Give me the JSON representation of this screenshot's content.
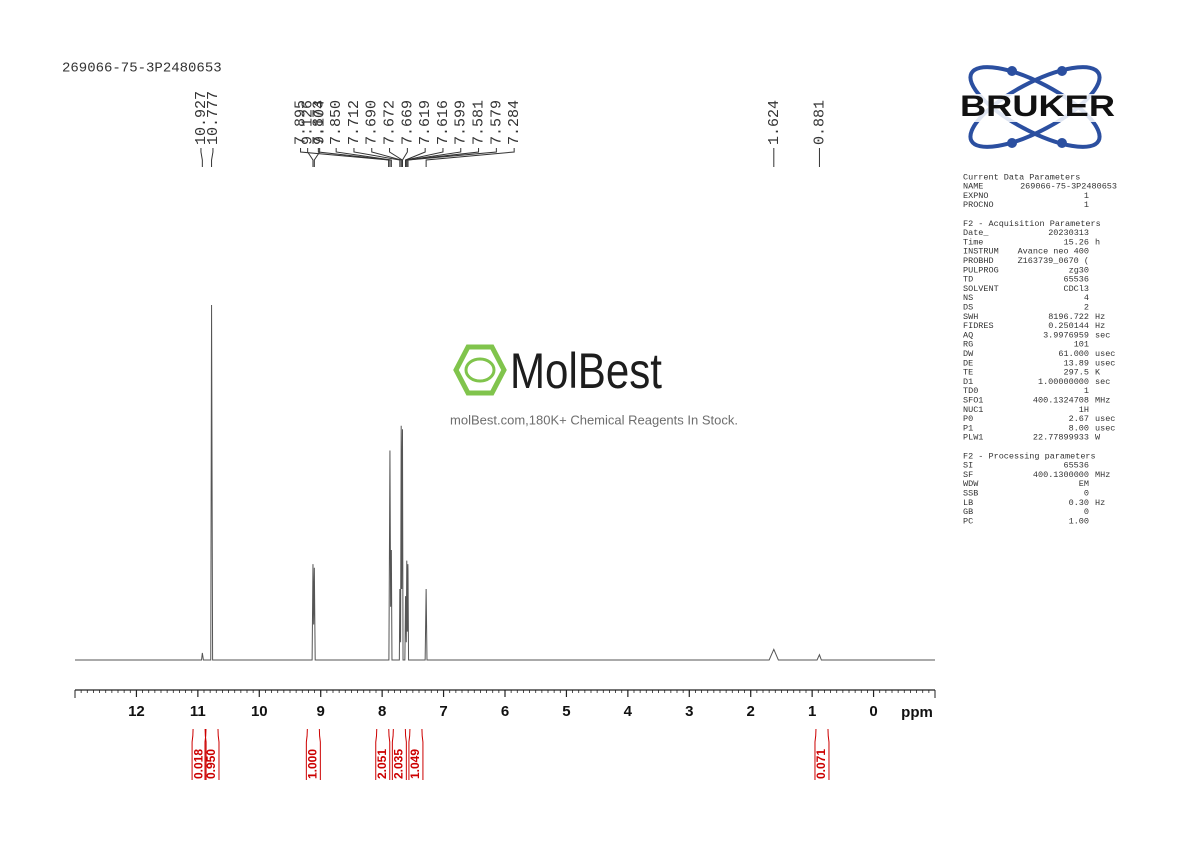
{
  "chart_data": {
    "type": "line",
    "title": "269066-75-3P2480653",
    "x_label": "ppm",
    "xlim": [
      13,
      -1
    ],
    "xticks": [
      12,
      11,
      10,
      9,
      8,
      7,
      6,
      5,
      4,
      3,
      2,
      1,
      0
    ],
    "ylim": [
      0,
      100
    ],
    "color": "#555555",
    "x": [
      13,
      10.94,
      10.927,
      10.91,
      10.79,
      10.777,
      10.76,
      9.14,
      9.126,
      9.115,
      9.104,
      9.09,
      7.89,
      7.873,
      7.862,
      7.85,
      7.84,
      7.72,
      7.712,
      7.7,
      7.69,
      7.681,
      7.672,
      7.669,
      7.66,
      7.63,
      7.619,
      7.616,
      7.607,
      7.599,
      7.59,
      7.581,
      7.579,
      7.57,
      7.3,
      7.284,
      7.27,
      1.7,
      1.624,
      1.55,
      0.92,
      0.881,
      0.85,
      -1
    ],
    "values": [
      0,
      0,
      2,
      0,
      0,
      100,
      0,
      0,
      27,
      10,
      26,
      0,
      0,
      59,
      15,
      31,
      0,
      0,
      20,
      5,
      66,
      20,
      60,
      65,
      0,
      0,
      18,
      15,
      5,
      28,
      8,
      27,
      25,
      0,
      0,
      20,
      0,
      0,
      3,
      0,
      0,
      1.5,
      0,
      0
    ],
    "peak_labels": [
      10.927,
      10.777,
      9.126,
      9.104,
      7.895,
      7.873,
      {
        "value": 7.85,
        "label": "7.850"
      },
      7.712,
      {
        "value": 7.69,
        "label": "7.690"
      },
      7.672,
      7.669,
      7.619,
      7.616,
      7.599,
      7.581,
      7.579,
      7.284,
      1.624,
      0.881
    ],
    "integrals_color": "#cc0000",
    "integrals": [
      {
        "at": 10.98,
        "value": 0.018
      },
      {
        "at": 10.77,
        "value": 0.95,
        "label": "0.950"
      },
      {
        "at": 9.12,
        "value": 1,
        "label": "1.000"
      },
      {
        "at": 7.99,
        "value": 2.051
      },
      {
        "at": 7.72,
        "value": 2.035
      },
      {
        "at": 7.45,
        "value": 1.049
      },
      {
        "at": 0.84,
        "value": 0.071
      }
    ]
  },
  "logos": {
    "bruker": "BRUKER",
    "molbest": "MolBest",
    "watermark": "molBest.com,180K+ Chemical Reagents In Stock."
  },
  "parameters": [
    {
      "title": "Current Data Parameters",
      "rows": [
        [
          "NAME",
          "269066-75-3P2480653"
        ],
        [
          "EXPNO",
          "1"
        ],
        [
          "PROCNO",
          "1"
        ]
      ]
    },
    {
      "title": "F2 - Acquisition Parameters",
      "rows": [
        [
          "Date_",
          "20230313"
        ],
        [
          "Time",
          "15.26",
          "h"
        ],
        [
          "INSTRUM",
          "Avance neo 400"
        ],
        [
          "PROBHD",
          "Z163739_0670 ("
        ],
        [
          "PULPROG",
          "zg30"
        ],
        [
          "TD",
          "65536"
        ],
        [
          "SOLVENT",
          "CDCl3"
        ],
        [
          "NS",
          "4"
        ],
        [
          "DS",
          "2"
        ],
        [
          "SWH",
          "8196.722",
          "Hz"
        ],
        [
          "FIDRES",
          "0.250144",
          "Hz"
        ],
        [
          "AQ",
          "3.9976959",
          "sec"
        ],
        [
          "RG",
          "101"
        ],
        [
          "DW",
          "61.000",
          "usec"
        ],
        [
          "DE",
          "13.89",
          "usec"
        ],
        [
          "TE",
          "297.5",
          "K"
        ],
        [
          "D1",
          "1.00000000",
          "sec"
        ],
        [
          "TD0",
          "1"
        ],
        [
          "SFO1",
          "400.1324708",
          "MHz"
        ],
        [
          "NUC1",
          "1H"
        ],
        [
          "P0",
          "2.67",
          "usec"
        ],
        [
          "P1",
          "8.00",
          "usec"
        ],
        [
          "PLW1",
          "22.77899933",
          "W"
        ]
      ]
    },
    {
      "title": "F2 - Processing parameters",
      "rows": [
        [
          "SI",
          "65536"
        ],
        [
          "SF",
          "400.1300000",
          "MHz"
        ],
        [
          "WDW",
          "EM"
        ],
        [
          "SSB",
          "0"
        ],
        [
          "LB",
          "0.30",
          "Hz"
        ],
        [
          "GB",
          "0"
        ],
        [
          "PC",
          "1.00"
        ]
      ]
    }
  ]
}
